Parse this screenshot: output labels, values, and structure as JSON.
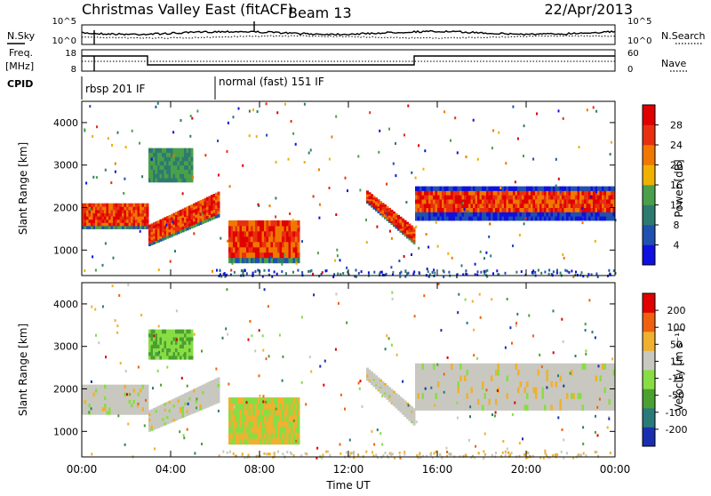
{
  "header": {
    "title": "Christmas Valley East (fitACF)",
    "beam": "Beam 13",
    "date": "22/Apr/2013"
  },
  "params": {
    "nsky_label": "N.Sky",
    "nsearch_label": "N.Search",
    "freq_label_1": "Freq.",
    "freq_label_2": "[MHz]",
    "nave_label": "Nave",
    "cpid_label": "CPID",
    "noise_ticks": [
      "10^5",
      "10^0"
    ],
    "freq_ticks": [
      "18",
      "8"
    ],
    "nave_ticks": [
      "60",
      "0"
    ],
    "cpid_segments": [
      {
        "label": "rbsp 201 IF",
        "start_hour": 0
      },
      {
        "label": "normal (fast) 151 IF",
        "start_hour": 6
      }
    ]
  },
  "chart_data": [
    {
      "type": "heatmap",
      "name": "power-panel",
      "xlabel": "Time UT",
      "ylabel": "Slant Range [km]",
      "xlim": [
        0,
        24
      ],
      "ylim": [
        400,
        4500
      ],
      "yticks": [
        1000,
        2000,
        3000,
        4000
      ],
      "colorbar": {
        "label": "Power [dB]",
        "ticks": [
          4,
          8,
          12,
          16,
          20,
          24,
          28
        ],
        "colors": [
          "#1010e0",
          "#2050b0",
          "#2e7a6e",
          "#4aa04a",
          "#f0b000",
          "#f07800",
          "#e83010",
          "#e00000"
        ]
      },
      "features": [
        {
          "desc": "band",
          "t": [
            0.0,
            3.0
          ],
          "range": [
            1500,
            2100
          ],
          "level": "red"
        },
        {
          "desc": "rising",
          "t": [
            3.0,
            6.2
          ],
          "range_start": [
            1100,
            1600
          ],
          "range_end": [
            1800,
            2400
          ],
          "level": "red"
        },
        {
          "desc": "upper",
          "t": [
            3.0,
            5.0
          ],
          "range": [
            2600,
            3400
          ],
          "level": "green"
        },
        {
          "desc": "blob",
          "t": [
            6.6,
            9.8
          ],
          "range": [
            700,
            1700
          ],
          "level": "red"
        },
        {
          "desc": "falling",
          "t": [
            12.8,
            15.0
          ],
          "range_start": [
            2100,
            2400
          ],
          "range_end": [
            1100,
            1500
          ],
          "level": "red"
        },
        {
          "desc": "band",
          "t": [
            15.0,
            24.0
          ],
          "range": [
            1700,
            2500
          ],
          "level": "orange"
        }
      ]
    },
    {
      "type": "heatmap",
      "name": "velocity-panel",
      "xlabel": "Time UT",
      "ylabel": "Slant Range [km]",
      "xlim": [
        0,
        24
      ],
      "ylim": [
        400,
        4500
      ],
      "yticks": [
        1000,
        2000,
        3000,
        4000
      ],
      "xticks": [
        "00:00",
        "04:00",
        "08:00",
        "12:00",
        "16:00",
        "20:00",
        "00:00"
      ],
      "colorbar": {
        "label": "Velocity [m s⁻¹]",
        "ticks": [
          200,
          100,
          50,
          15,
          -15,
          -50,
          -100,
          -200
        ],
        "colors": [
          "#1a2fb0",
          "#2a7a7a",
          "#4aa030",
          "#88dd44",
          "#c8c8c0",
          "#f0b030",
          "#f06010",
          "#e00000"
        ]
      },
      "features": [
        {
          "desc": "band",
          "t": [
            0.0,
            3.0
          ],
          "range": [
            1400,
            2100
          ],
          "level": "grey"
        },
        {
          "desc": "rising",
          "t": [
            3.0,
            6.2
          ],
          "range_start": [
            1000,
            1500
          ],
          "range_end": [
            1700,
            2300
          ],
          "level": "grey"
        },
        {
          "desc": "upper",
          "t": [
            3.0,
            5.0
          ],
          "range": [
            2700,
            3400
          ],
          "level": "green"
        },
        {
          "desc": "blob",
          "t": [
            6.6,
            9.8
          ],
          "range": [
            700,
            1800
          ],
          "level": "green/orange"
        },
        {
          "desc": "falling",
          "t": [
            12.8,
            15.0
          ],
          "range_start": [
            2200,
            2500
          ],
          "range_end": [
            1100,
            1500
          ],
          "level": "grey"
        },
        {
          "desc": "band",
          "t": [
            15.0,
            24.0
          ],
          "range": [
            1500,
            2600
          ],
          "level": "grey"
        }
      ]
    }
  ]
}
